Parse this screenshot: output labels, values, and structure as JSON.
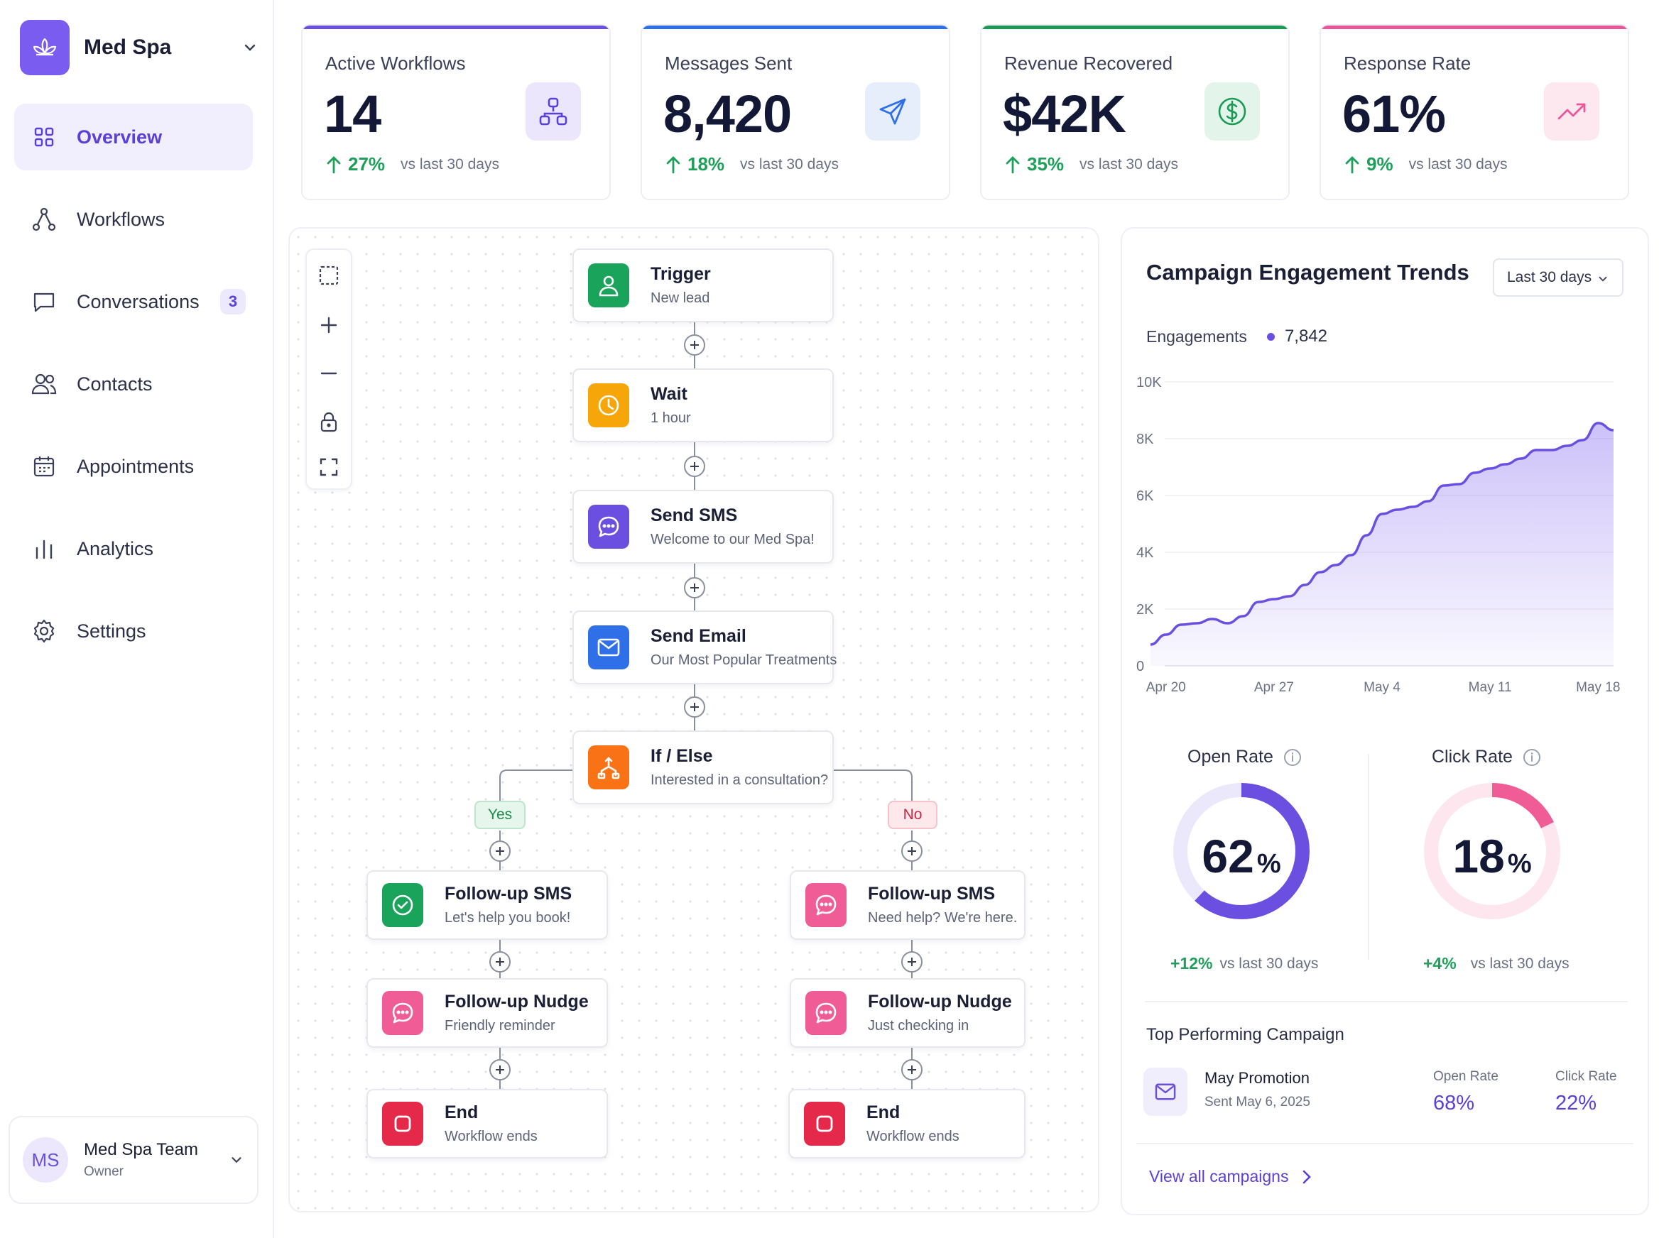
{
  "brand": {
    "name": "Med Spa"
  },
  "sidebar": {
    "items": [
      {
        "label": "Overview",
        "icon": "grid-icon",
        "active": true
      },
      {
        "label": "Workflows",
        "icon": "workflow-icon"
      },
      {
        "label": "Conversations",
        "icon": "chat-icon",
        "badge": "3"
      },
      {
        "label": "Contacts",
        "icon": "users-icon"
      },
      {
        "label": "Appointments",
        "icon": "calendar-icon"
      },
      {
        "label": "Analytics",
        "icon": "bars-icon"
      },
      {
        "label": "Settings",
        "icon": "gear-icon"
      }
    ],
    "team": {
      "initials": "MS",
      "name": "Med Spa Team",
      "role": "Owner"
    }
  },
  "stats": [
    {
      "title": "Active Workflows",
      "value": "14",
      "change": "27%",
      "vs": "vs last 30 days",
      "accent": "#6b4fe0",
      "icon": "workflow-icon"
    },
    {
      "title": "Messages Sent",
      "value": "8,420",
      "change": "18%",
      "vs": "vs last 30 days",
      "accent": "#2f6fe8",
      "icon": "send-icon"
    },
    {
      "title": "Revenue Recovered",
      "value": "$42K",
      "change": "35%",
      "vs": "vs last 30 days",
      "accent": "#1a9a55",
      "icon": "dollar-icon"
    },
    {
      "title": "Response Rate",
      "value": "61%",
      "change": "9%",
      "vs": "vs last 30 days",
      "accent": "#e8579a",
      "icon": "trend-up-icon"
    }
  ],
  "workflow": {
    "trigger": {
      "title": "Trigger",
      "sub": "New lead"
    },
    "wait": {
      "title": "Wait",
      "sub": "1 hour"
    },
    "sms": {
      "title": "Send SMS",
      "sub": "Welcome to our Med Spa!"
    },
    "email": {
      "title": "Send Email",
      "sub": "Our Most Popular Treatments"
    },
    "ifelse": {
      "title": "If / Else",
      "sub": "Interested in a consultation?"
    },
    "yes_label": "Yes",
    "no_label": "No",
    "yes_branch": [
      {
        "title": "Follow-up SMS",
        "sub": "Let's help you book!"
      },
      {
        "title": "Follow-up Nudge",
        "sub": "Friendly reminder"
      },
      {
        "title": "End",
        "sub": "Workflow ends"
      }
    ],
    "no_branch": [
      {
        "title": "Follow-up SMS",
        "sub": "Need help? We're here."
      },
      {
        "title": "Follow-up Nudge",
        "sub": "Just checking in"
      },
      {
        "title": "End",
        "sub": "Workflow ends"
      }
    ]
  },
  "engagement": {
    "title": "Campaign Engagement Trends",
    "range": "Last 30 days",
    "series_label": "Engagements",
    "series_value": "7,842"
  },
  "chart_data": {
    "type": "area",
    "title": "Campaign Engagement Trends",
    "ylim": [
      0,
      10000
    ],
    "yticks": [
      "0",
      "2K",
      "4K",
      "6K",
      "8K",
      "10K"
    ],
    "xticks": [
      "Apr 20",
      "Apr 27",
      "May 4",
      "May 11",
      "May 18"
    ],
    "series": [
      {
        "name": "Engagements",
        "x": [
          "Apr 19",
          "Apr 20",
          "Apr 21",
          "Apr 22",
          "Apr 23",
          "Apr 24",
          "Apr 25",
          "Apr 26",
          "Apr 27",
          "Apr 28",
          "Apr 29",
          "Apr 30",
          "May 1",
          "May 2",
          "May 3",
          "May 4",
          "May 5",
          "May 6",
          "May 7",
          "May 8",
          "May 9",
          "May 10",
          "May 11",
          "May 12",
          "May 13",
          "May 14",
          "May 15",
          "May 16",
          "May 17",
          "May 18",
          "May 19"
        ],
        "values": [
          750,
          1100,
          1450,
          1500,
          1650,
          1500,
          1750,
          2250,
          2350,
          2450,
          2850,
          3300,
          3550,
          3900,
          4600,
          5350,
          5500,
          5600,
          5800,
          6350,
          6400,
          6800,
          6950,
          7100,
          7300,
          7600,
          7600,
          7750,
          7950,
          8550,
          8300
        ]
      }
    ],
    "color": "#6b4fe0"
  },
  "open_rate": {
    "title": "Open Rate",
    "value": "62",
    "unit": "%",
    "fraction": 0.62,
    "change": "+12%",
    "vs": "vs last 30 days",
    "color": "#6b4fe0",
    "track": "#ece8fb"
  },
  "click_rate": {
    "title": "Click Rate",
    "value": "18",
    "unit": "%",
    "fraction": 0.18,
    "change": "+4%",
    "vs": "vs last 30 days",
    "color": "#f05d96",
    "track": "#fde6ee"
  },
  "top_campaign": {
    "section_title": "Top Performing Campaign",
    "name": "May Promotion",
    "date": "Sent May 6, 2025",
    "open_label": "Open Rate",
    "open_value": "68%",
    "click_label": "Click Rate",
    "click_value": "22%"
  },
  "view_all": "View all campaigns"
}
